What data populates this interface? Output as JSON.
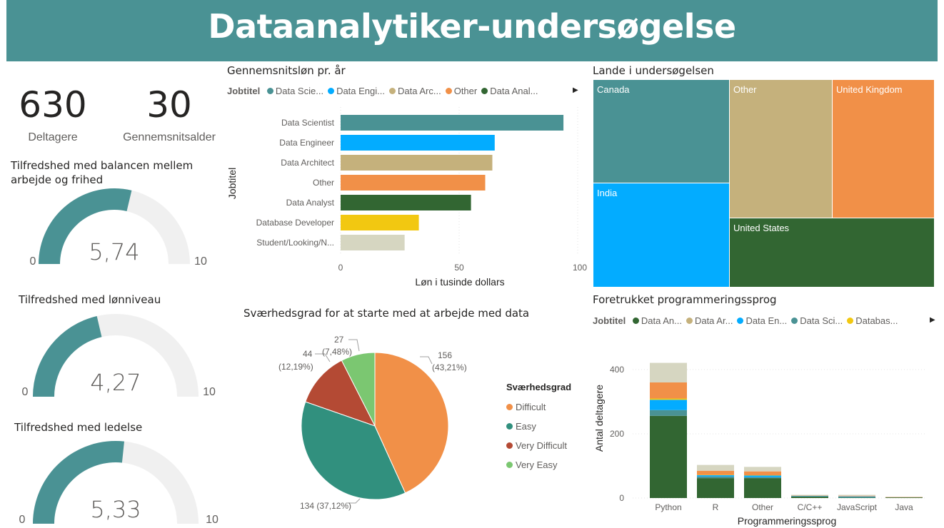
{
  "header": {
    "title": "Dataanalytiker-undersøgelse"
  },
  "kpis": {
    "participants": {
      "value": "630",
      "label": "Deltagere"
    },
    "avg_age": {
      "value": "30",
      "label": "Gennemsnitsalder"
    }
  },
  "gauges": [
    {
      "title_line1": "Tilfredshed med balancen mellem",
      "title_line2": "arbejde og frihed",
      "value": 5.74,
      "value_text": "5,74",
      "min": "0",
      "max": "10"
    },
    {
      "title_line1": "Tilfredshed med lønniveau",
      "title_line2": "",
      "value": 4.27,
      "value_text": "4,27",
      "min": "0",
      "max": "10"
    },
    {
      "title_line1": "Tilfredshed med ledelse",
      "title_line2": "",
      "value": 5.33,
      "value_text": "5,33",
      "min": "0",
      "max": "10"
    }
  ],
  "colors": {
    "teal": "#4A9294",
    "blue": "#03ACFF",
    "tan": "#C5B17C",
    "orange": "#F19048",
    "dark_green": "#326632",
    "yellow": "#F2C811",
    "light_gray": "#D6D6C1",
    "gauge_bg": "#F0F0F0",
    "pie_difficult": "#F19048",
    "pie_easy": "#31907E",
    "pie_very_difficult": "#B44A34",
    "pie_very_easy": "#7BC771"
  },
  "salary": {
    "title": "Gennemsnitsløn pr. år",
    "legend_title": "Jobtitel",
    "legend_items": [
      {
        "label": "Data Scie...",
        "color": "#4A9294"
      },
      {
        "label": "Data Engi...",
        "color": "#03ACFF"
      },
      {
        "label": "Data Arc...",
        "color": "#C5B17C"
      },
      {
        "label": "Other",
        "color": "#F19048"
      },
      {
        "label": "Data Anal...",
        "color": "#326632"
      }
    ],
    "legend_more_icon": "▶"
  },
  "countries": {
    "title": "Lande i undersøgelsen",
    "cells": [
      {
        "label": "Canada",
        "color": "#4A9294"
      },
      {
        "label": "Other",
        "color": "#C5B17C"
      },
      {
        "label": "United Kingdom",
        "color": "#F19048"
      },
      {
        "label": "India",
        "color": "#03ACFF"
      },
      {
        "label": "United States",
        "color": "#326632"
      }
    ]
  },
  "difficulty": {
    "title": "Sværhedsgrad for at starte med at arbejde med data",
    "legend_title": "Sværhedsgrad",
    "labels": [
      {
        "line1": "156",
        "line2": "(43,21%)"
      },
      {
        "line1": "134 (37,12%)",
        "line2": ""
      },
      {
        "line1": "44",
        "line2": "(12,19%)"
      },
      {
        "line1": "27",
        "line2": "(7,48%)"
      }
    ]
  },
  "languages": {
    "title": "Foretrukket programmeringssprog",
    "legend_title": "Jobtitel",
    "legend_items": [
      {
        "label": "Data An...",
        "color": "#326632"
      },
      {
        "label": "Data Ar...",
        "color": "#C5B17C"
      },
      {
        "label": "Data En...",
        "color": "#03ACFF"
      },
      {
        "label": "Data Sci...",
        "color": "#4A9294"
      },
      {
        "label": "Databas...",
        "color": "#F2C811"
      }
    ],
    "legend_more_icon": "▶"
  },
  "chart_data": [
    {
      "type": "bar",
      "orientation": "horizontal",
      "title": "Gennemsnitsløn pr. år",
      "categories": [
        "Data Scientist",
        "Data Engineer",
        "Data Architect",
        "Other",
        "Data Analyst",
        "Database Developer",
        "Student/Looking/N..."
      ],
      "values": [
        94,
        65,
        64,
        61,
        55,
        33,
        27
      ],
      "colors": [
        "#4A9294",
        "#03ACFF",
        "#C5B17C",
        "#F19048",
        "#326632",
        "#F2C811",
        "#D6D6C1"
      ],
      "xlabel": "Løn i tusinde dollars",
      "ylabel": "Jobtitel",
      "xlim": [
        0,
        100
      ],
      "xticks": [
        "0",
        "50",
        "100"
      ],
      "grid": "vertical dotted"
    },
    {
      "type": "treemap",
      "title": "Lande i undersøgelsen",
      "categories": [
        "Canada",
        "Other",
        "United Kingdom",
        "India",
        "United States"
      ]
    },
    {
      "type": "pie",
      "title": "Sværhedsgrad for at starte med at arbejde med data",
      "categories": [
        "Difficult",
        "Easy",
        "Very Difficult",
        "Very Easy"
      ],
      "values": [
        156,
        134,
        44,
        27
      ],
      "percent_labels": [
        "43,21%",
        "37,12%",
        "12,19%",
        "7,48%"
      ],
      "colors": [
        "#F19048",
        "#31907E",
        "#B44A34",
        "#7BC771"
      ],
      "legend_position": "right"
    },
    {
      "type": "bar",
      "stacked": true,
      "title": "Foretrukket programmeringssprog",
      "categories": [
        "Python",
        "R",
        "Other",
        "C/C++",
        "JavaScript",
        "Java"
      ],
      "series": [
        {
          "name": "Data Analyst",
          "color": "#326632",
          "values": [
            256,
            62,
            62,
            5,
            2,
            2
          ]
        },
        {
          "name": "Data Scientist",
          "color": "#4A9294",
          "values": [
            18,
            5,
            3,
            1,
            1,
            0
          ]
        },
        {
          "name": "Data Engineer",
          "color": "#03ACFF",
          "values": [
            32,
            4,
            5,
            1,
            2,
            0
          ]
        },
        {
          "name": "Database Developer",
          "color": "#F2C811",
          "values": [
            4,
            1,
            1,
            0,
            0,
            0
          ]
        },
        {
          "name": "Other",
          "color": "#F19048",
          "values": [
            50,
            13,
            12,
            1,
            2,
            1
          ]
        },
        {
          "name": "Student/Looking/None",
          "color": "#D6D6C1",
          "values": [
            61,
            18,
            14,
            2,
            3,
            1
          ]
        }
      ],
      "xlabel": "Programmeringssprog",
      "ylabel": "Antal deltagere",
      "ylim": [
        0,
        420
      ],
      "yticks": [
        "0",
        "200",
        "400"
      ]
    }
  ]
}
